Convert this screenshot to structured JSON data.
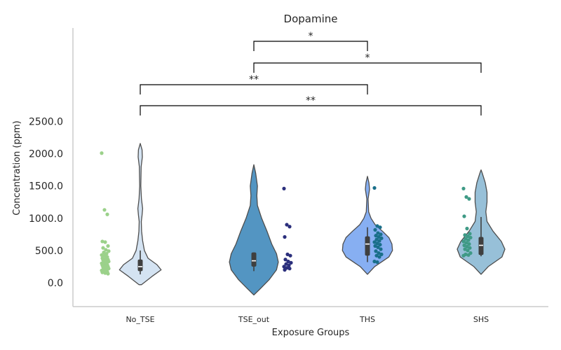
{
  "chart_data": {
    "type": "violin",
    "title": "Dopamine",
    "xlabel": "Exposure Groups",
    "ylabel": "Concentration (ppm)",
    "ylim": [
      -370,
      3950
    ],
    "yticks": [
      "0.0",
      "500.0",
      "1000.0",
      "1500.0",
      "2000.0",
      "2500.0"
    ],
    "categories": [
      "No_TSE",
      "TSE_out",
      "THS",
      "SHS"
    ],
    "grid": false,
    "colors": {
      "violin": [
        "#d4e3f2",
        "#5395c2",
        "#87aff2",
        "#97c0d8"
      ],
      "points": [
        "#9bd18a",
        "#2b2f7c",
        "#1a6f8a",
        "#3f9a86"
      ]
    },
    "violins": [
      {
        "group": "No_TSE",
        "y_min": -30,
        "y_max": 2160,
        "q1": 180,
        "median": 250,
        "q3": 360,
        "whisker_low": 130,
        "whisker_high": 500,
        "profile": [
          [
            -30,
            0.02
          ],
          [
            100,
            0.2
          ],
          [
            200,
            0.35
          ],
          [
            280,
            0.28
          ],
          [
            380,
            0.13
          ],
          [
            500,
            0.07
          ],
          [
            650,
            0.04
          ],
          [
            800,
            0.022
          ],
          [
            950,
            0.018
          ],
          [
            1050,
            0.03
          ],
          [
            1150,
            0.04
          ],
          [
            1300,
            0.02
          ],
          [
            1500,
            0.01
          ],
          [
            1800,
            0.015
          ],
          [
            1950,
            0.035
          ],
          [
            2060,
            0.03
          ],
          [
            2160,
            0
          ]
        ]
      },
      {
        "group": "TSE_out",
        "y_min": -190,
        "y_max": 1830,
        "q1": 250,
        "median": 340,
        "q3": 470,
        "whisker_low": 180,
        "whisker_high": 470,
        "profile": [
          [
            -190,
            0
          ],
          [
            -100,
            0.1
          ],
          [
            50,
            0.26
          ],
          [
            200,
            0.38
          ],
          [
            320,
            0.41
          ],
          [
            450,
            0.38
          ],
          [
            600,
            0.3
          ],
          [
            800,
            0.22
          ],
          [
            1000,
            0.13
          ],
          [
            1200,
            0.06
          ],
          [
            1350,
            0.05
          ],
          [
            1500,
            0.06
          ],
          [
            1700,
            0.03
          ],
          [
            1830,
            0
          ]
        ]
      },
      {
        "group": "THS",
        "y_min": 130,
        "y_max": 1650,
        "q1": 420,
        "median": 600,
        "q3": 720,
        "whisker_low": 320,
        "whisker_high": 860,
        "profile": [
          [
            130,
            0
          ],
          [
            250,
            0.12
          ],
          [
            400,
            0.36
          ],
          [
            500,
            0.42
          ],
          [
            600,
            0.41
          ],
          [
            700,
            0.36
          ],
          [
            800,
            0.25
          ],
          [
            900,
            0.13
          ],
          [
            1000,
            0.06
          ],
          [
            1100,
            0.02
          ],
          [
            1300,
            0.01
          ],
          [
            1450,
            0.035
          ],
          [
            1550,
            0.025
          ],
          [
            1650,
            0
          ]
        ]
      },
      {
        "group": "SHS",
        "y_min": 130,
        "y_max": 1750,
        "q1": 430,
        "median": 580,
        "q3": 710,
        "whisker_low": 410,
        "whisker_high": 1020,
        "profile": [
          [
            130,
            0
          ],
          [
            250,
            0.12
          ],
          [
            400,
            0.35
          ],
          [
            520,
            0.4
          ],
          [
            640,
            0.34
          ],
          [
            800,
            0.2
          ],
          [
            950,
            0.1
          ],
          [
            1100,
            0.08
          ],
          [
            1250,
            0.1
          ],
          [
            1400,
            0.1
          ],
          [
            1550,
            0.07
          ],
          [
            1700,
            0.02
          ],
          [
            1750,
            0
          ]
        ]
      }
    ],
    "points": [
      {
        "group": "No_TSE",
        "values": [
          2010,
          1130,
          1060,
          640,
          630,
          570,
          540,
          510,
          490,
          470,
          450,
          430,
          420,
          400,
          380,
          370,
          360,
          350,
          340,
          330,
          320,
          310,
          300,
          290,
          280,
          270,
          260,
          250,
          240,
          230,
          220,
          210,
          200,
          190,
          180,
          170,
          160,
          150,
          140
        ]
      },
      {
        "group": "TSE_out",
        "values": [
          1460,
          900,
          870,
          710,
          440,
          420,
          360,
          330,
          310,
          290,
          270,
          250,
          230,
          220,
          200
        ]
      },
      {
        "group": "THS",
        "values": [
          1470,
          880,
          860,
          820,
          770,
          750,
          730,
          710,
          690,
          670,
          650,
          630,
          610,
          590,
          570,
          550,
          520,
          490,
          460,
          440,
          420,
          400,
          330,
          320
        ]
      },
      {
        "group": "SHS",
        "values": [
          1460,
          1330,
          1300,
          1030,
          840,
          760,
          740,
          720,
          700,
          680,
          660,
          640,
          620,
          600,
          580,
          560,
          540,
          520,
          500,
          460,
          440,
          430,
          420
        ]
      }
    ],
    "annotations": [
      {
        "label": "*",
        "from": "TSE_out",
        "to": "THS"
      },
      {
        "label": "*",
        "from": "TSE_out",
        "to": "SHS"
      },
      {
        "label": "**",
        "from": "No_TSE",
        "to": "THS"
      },
      {
        "label": "**",
        "from": "No_TSE",
        "to": "SHS"
      }
    ]
  }
}
